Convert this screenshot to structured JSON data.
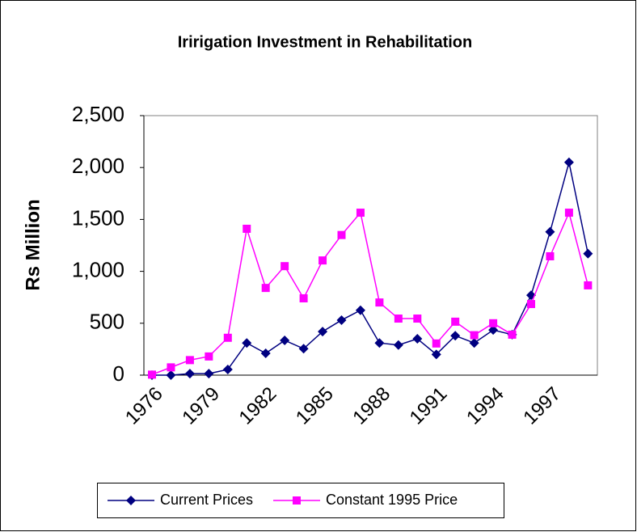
{
  "chart_data": {
    "type": "line",
    "title": "Iririgation Investment in Rehabilitation",
    "y_label": "Rs Million",
    "categories": [
      "1976",
      null,
      null,
      "1979",
      null,
      null,
      "1982",
      null,
      null,
      "1985",
      null,
      null,
      "1988",
      null,
      null,
      "1991",
      null,
      null,
      "1994",
      null,
      null,
      "1997",
      null,
      null
    ],
    "series": [
      {
        "name": "Current Prices",
        "color": "#000080",
        "marker": "diamond",
        "values": [
          0,
          0,
          15,
          15,
          55,
          310,
          210,
          335,
          255,
          420,
          530,
          625,
          310,
          290,
          350,
          200,
          380,
          310,
          435,
          390,
          770,
          1380,
          2050,
          1170
        ]
      },
      {
        "name": "Constant 1995 Price",
        "color": "#ff00ff",
        "marker": "square",
        "values": [
          5,
          75,
          145,
          180,
          360,
          1410,
          840,
          1050,
          740,
          1105,
          1350,
          1565,
          700,
          545,
          545,
          305,
          515,
          385,
          500,
          390,
          685,
          1145,
          1565,
          865
        ]
      }
    ],
    "ylim": [
      0,
      2500
    ],
    "yticks": [
      0,
      500,
      {
        "value": 1000,
        "label": "1,000"
      },
      {
        "value": 1500,
        "label": "1,500"
      },
      {
        "value": 2000,
        "label": "2,000"
      },
      {
        "value": 2500,
        "label": "2,500"
      }
    ],
    "grid": false,
    "legend": "bottom"
  }
}
